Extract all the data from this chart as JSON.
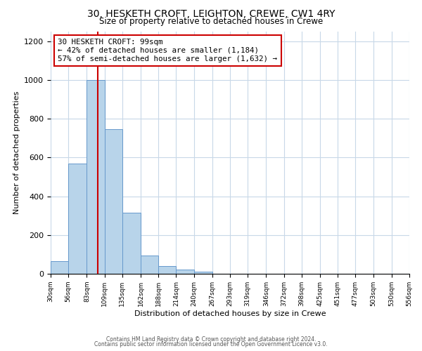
{
  "title": "30, HESKETH CROFT, LEIGHTON, CREWE, CW1 4RY",
  "subtitle": "Size of property relative to detached houses in Crewe",
  "xlabel": "Distribution of detached houses by size in Crewe",
  "ylabel": "Number of detached properties",
  "bin_edges": [
    30,
    56,
    83,
    109,
    135,
    162,
    188,
    214,
    240,
    267,
    293,
    319,
    346,
    372,
    398,
    425,
    451,
    477,
    503,
    530,
    556
  ],
  "bar_heights": [
    65,
    570,
    1000,
    745,
    315,
    95,
    40,
    20,
    10,
    0,
    0,
    0,
    0,
    0,
    0,
    0,
    0,
    0,
    0,
    0
  ],
  "bar_color": "#b8d4ea",
  "bar_edge_color": "#6699cc",
  "vline_x": 99,
  "vline_color": "#cc0000",
  "annotation_line1": "30 HESKETH CROFT: 99sqm",
  "annotation_line2": "← 42% of detached houses are smaller (1,184)",
  "annotation_line3": "57% of semi-detached houses are larger (1,632) →",
  "annotation_box_facecolor": "#ffffff",
  "annotation_box_edgecolor": "#cc0000",
  "ylim": [
    0,
    1250
  ],
  "yticks": [
    0,
    200,
    400,
    600,
    800,
    1000,
    1200
  ],
  "xtick_labels": [
    "30sqm",
    "56sqm",
    "83sqm",
    "109sqm",
    "135sqm",
    "162sqm",
    "188sqm",
    "214sqm",
    "240sqm",
    "267sqm",
    "293sqm",
    "319sqm",
    "346sqm",
    "372sqm",
    "398sqm",
    "425sqm",
    "451sqm",
    "477sqm",
    "503sqm",
    "530sqm",
    "556sqm"
  ],
  "footer_line1": "Contains HM Land Registry data © Crown copyright and database right 2024.",
  "footer_line2": "Contains public sector information licensed under the Open Government Licence v3.0.",
  "bg_color": "#ffffff",
  "grid_color": "#c8d8e8"
}
